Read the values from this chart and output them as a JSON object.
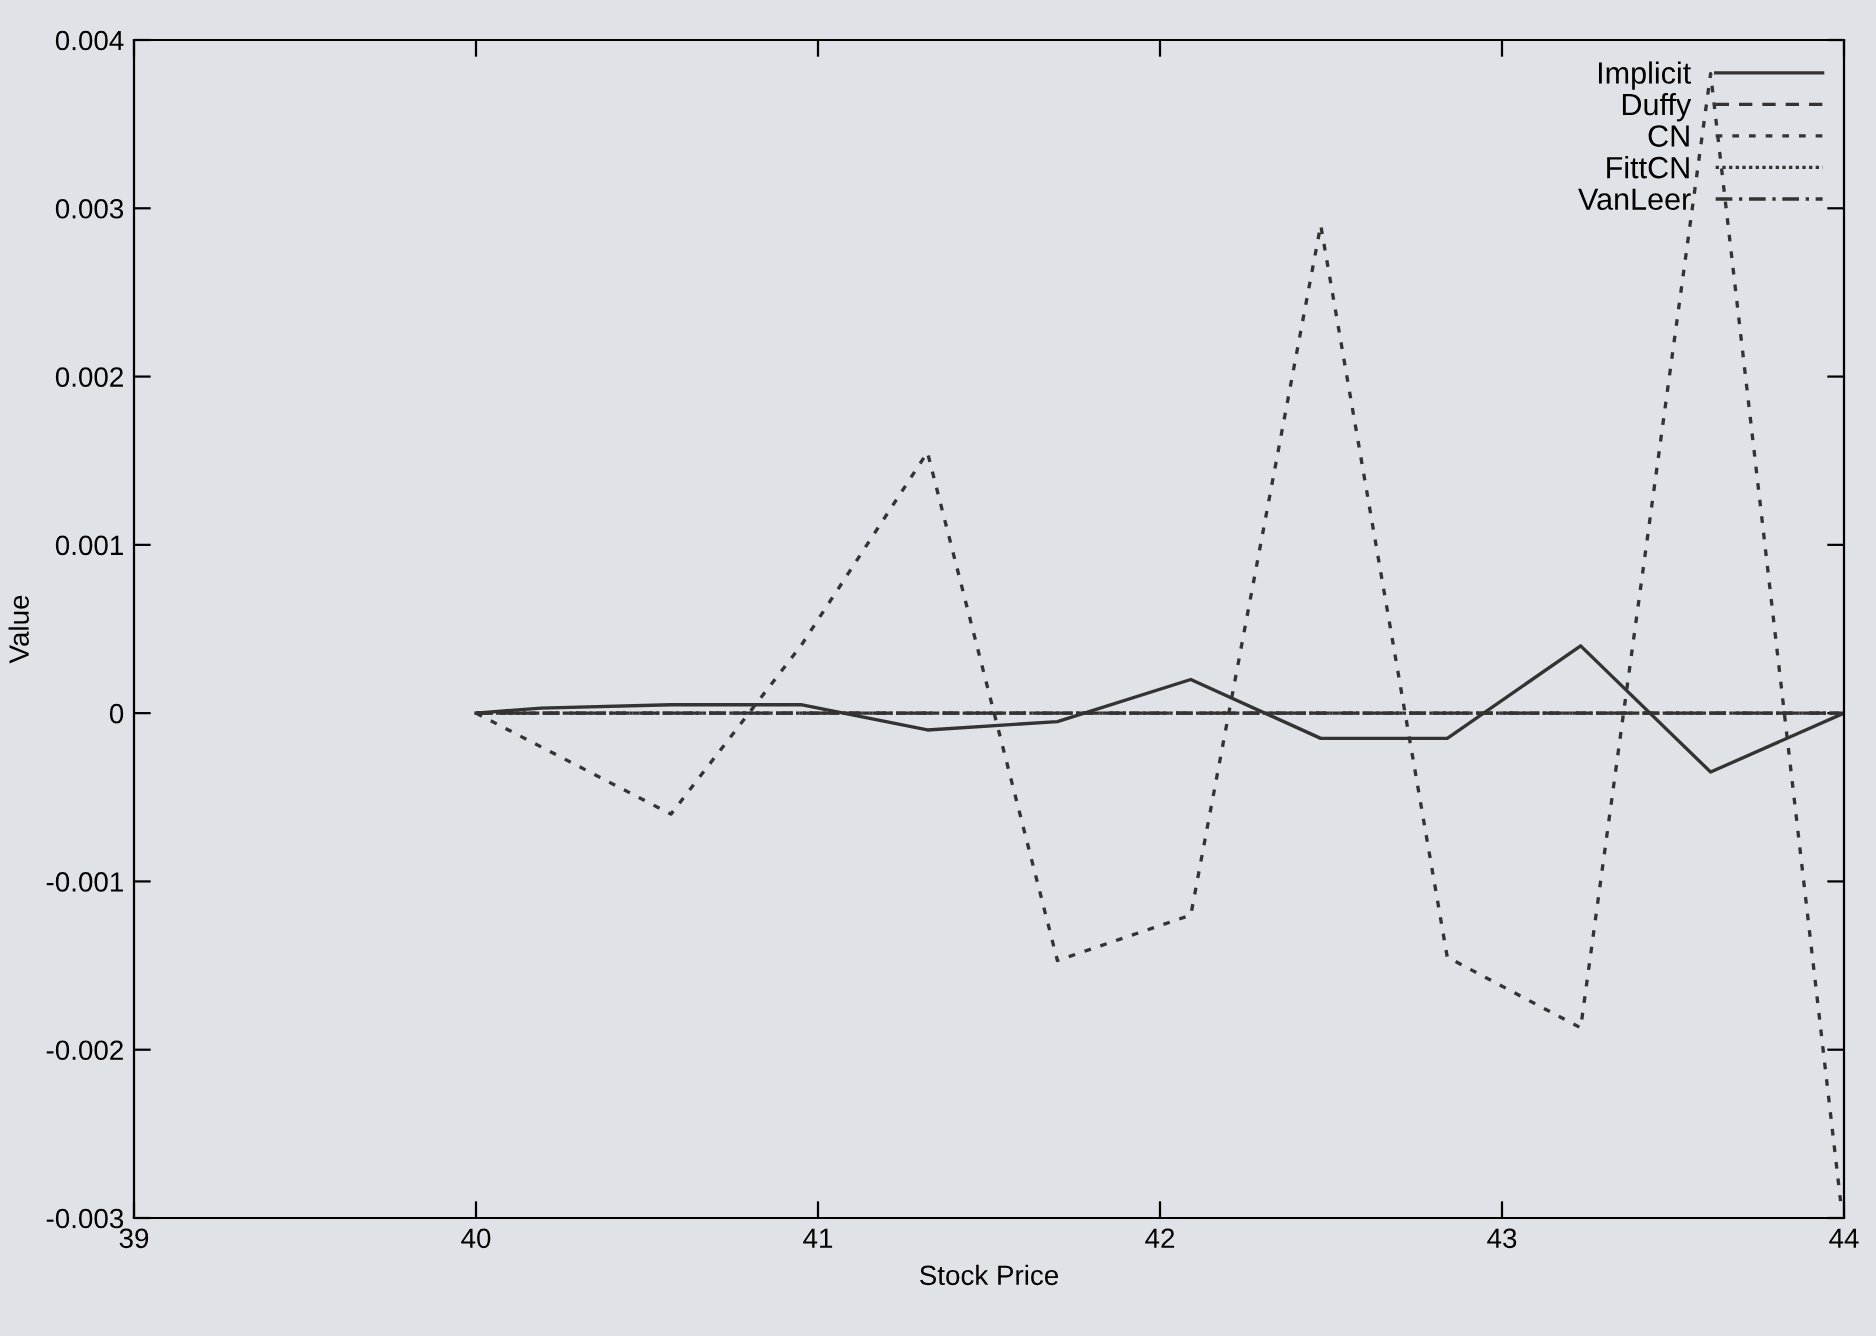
{
  "chart_data": {
    "type": "line",
    "xlabel": "Stock Price",
    "ylabel": "Value",
    "xlim": [
      39,
      44
    ],
    "xticks": [
      39,
      40,
      41,
      42,
      43,
      44
    ],
    "ylim": [
      -0.003,
      0.004
    ],
    "yticks": [
      -0.003,
      -0.002,
      -0.001,
      0,
      0.001,
      0.002,
      0.003,
      0.004
    ],
    "grid": false,
    "legend": "top right",
    "marker": "none",
    "series": [
      {
        "name": "Implicit",
        "color": "#333333",
        "line_style": "solid",
        "x": [
          40,
          40.19,
          40.57,
          40.95,
          41.32,
          41.7,
          42.09,
          42.47,
          42.84,
          43.23,
          43.61,
          44.0
        ],
        "values": [
          0,
          3e-05,
          5e-05,
          5e-05,
          -0.0001,
          -5e-05,
          0.0002,
          -0.00015,
          -0.00015,
          0.0004,
          -0.00035,
          0
        ]
      },
      {
        "name": "Duffy",
        "color": "#333333",
        "line_style": "dashed",
        "x": [
          40,
          44.0
        ],
        "values": [
          0,
          0
        ]
      },
      {
        "name": "CN",
        "color": "#333333",
        "line_style": "dotted",
        "x": [
          40,
          40.57,
          40.95,
          41.32,
          41.7,
          42.09,
          42.47,
          42.84,
          43.23,
          43.61,
          43.99
        ],
        "values": [
          0,
          -0.0006,
          0.0004,
          0.00155,
          -0.00147,
          -0.0012,
          0.0029,
          -0.00145,
          -0.00187,
          0.0038,
          -0.0029
        ]
      },
      {
        "name": "FittCN",
        "color": "#333333",
        "line_style": "densely dotted",
        "x": [
          40,
          44.0
        ],
        "values": [
          0,
          0
        ]
      },
      {
        "name": "VanLeer",
        "color": "#333333",
        "line_style": "dashdot",
        "x": [
          40,
          44.0
        ],
        "values": [
          0,
          0
        ]
      }
    ]
  }
}
